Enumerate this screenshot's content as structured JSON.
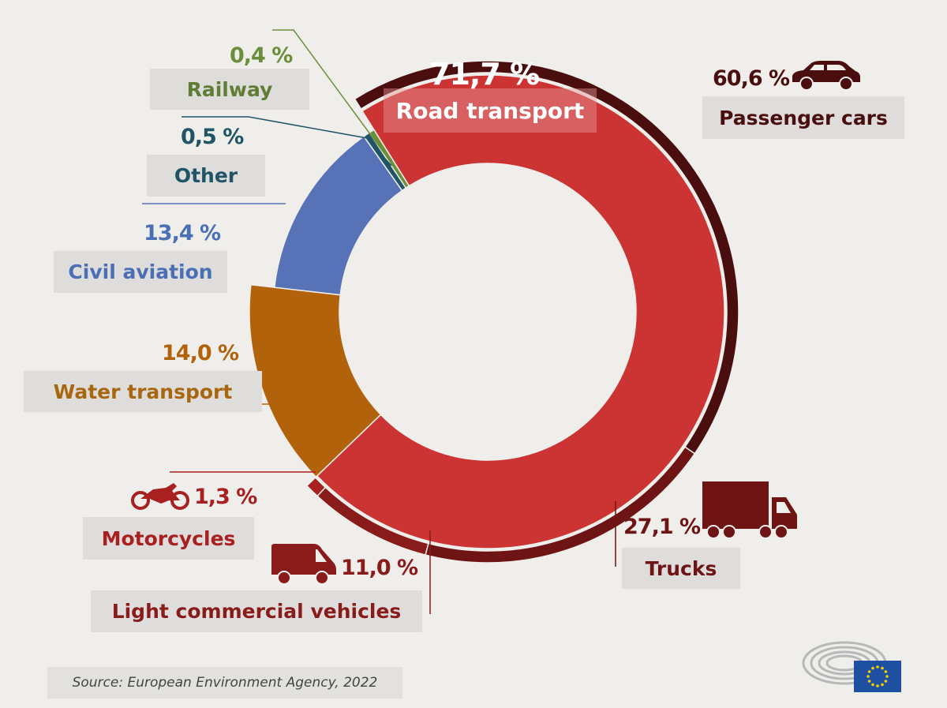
{
  "chart_data": {
    "type": "pie",
    "subtype": "donut with outer sub-ring",
    "title": "",
    "unit": "%",
    "segments": [
      {
        "name": "Road transport",
        "value": 71.7,
        "label": "71,7 %",
        "color": "#cc3333"
      },
      {
        "name": "Water transport",
        "value": 14.0,
        "label": "14,0 %",
        "color": "#b3620c"
      },
      {
        "name": "Civil aviation",
        "value": 13.4,
        "label": "13,4 %",
        "color": "#5872b8"
      },
      {
        "name": "Other",
        "value": 0.5,
        "label": "0,5 %",
        "color": "#1f5566"
      },
      {
        "name": "Railway",
        "value": 0.4,
        "label": "0,4 %",
        "color": "#6b8e3a"
      }
    ],
    "road_breakdown": [
      {
        "name": "Passenger cars",
        "value": 60.6,
        "label": "60,6 %",
        "color": "#4a0e0e",
        "icon": "car-icon"
      },
      {
        "name": "Trucks",
        "value": 27.1,
        "label": "27,1 %",
        "color": "#6e1414",
        "icon": "truck-icon"
      },
      {
        "name": "Light commercial vehicles",
        "value": 11.0,
        "label": "11,0 %",
        "color": "#8a1b1b",
        "icon": "van-icon"
      },
      {
        "name": "Motorcycles",
        "value": 1.3,
        "label": "1,3 %",
        "color": "#a82020",
        "icon": "motorcycle-icon"
      }
    ]
  },
  "source": "Source: European Environment Agency, 2022",
  "logo": "European Parliament"
}
